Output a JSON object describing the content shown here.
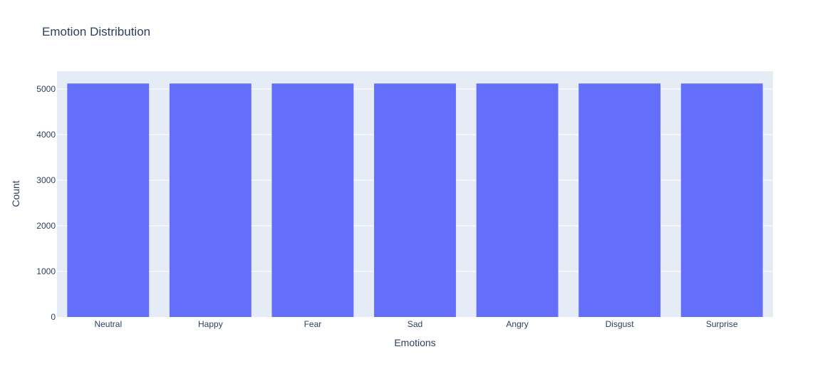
{
  "chart_data": {
    "type": "bar",
    "title": "Emotion Distribution",
    "xlabel": "Emotions",
    "ylabel": "Count",
    "categories": [
      "Neutral",
      "Happy",
      "Fear",
      "Sad",
      "Angry",
      "Disgust",
      "Surprise"
    ],
    "values": [
      5121,
      5121,
      5121,
      5121,
      5121,
      5121,
      5121
    ],
    "ylim": [
      0,
      5390
    ],
    "yticks": [
      0,
      1000,
      2000,
      3000,
      4000,
      5000
    ],
    "grid": true,
    "colors": {
      "bar": "#636efa",
      "plot_bg": "#e5ecf6",
      "grid": "#ffffff",
      "text": "#2a3f5f"
    }
  }
}
